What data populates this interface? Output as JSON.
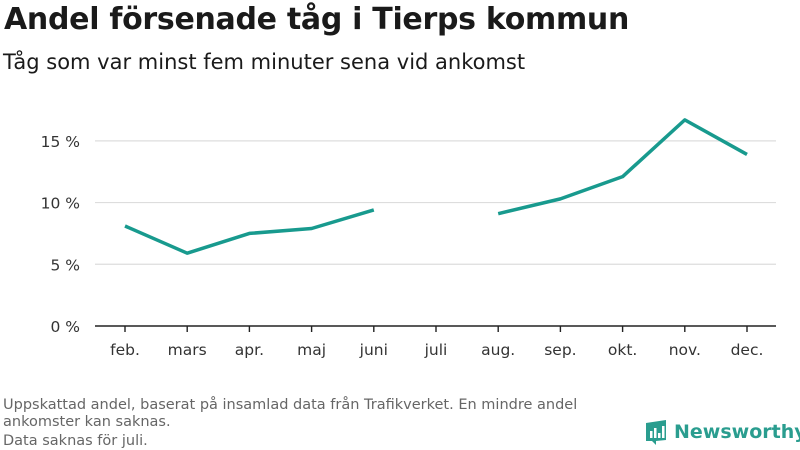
{
  "title": "Andel försenade tåg i Tierps kommun",
  "subtitle": "Tåg som var minst fem minuter sena vid ankomst",
  "notes": [
    "Uppskattad andel, baserat på insamlad data från Trafikverket. En mindre andel ankomster kan saknas.",
    "Data saknas för juli."
  ],
  "brand": "Newsworthy",
  "colors": {
    "line": "#189a8e",
    "grid": "#dddddd",
    "axis": "#222222",
    "brand": "#2a9d8f"
  },
  "chart_data": {
    "type": "line",
    "categories": [
      "feb.",
      "mars",
      "apr.",
      "maj",
      "juni",
      "juli",
      "aug.",
      "sep.",
      "okt.",
      "nov.",
      "dec."
    ],
    "series": [
      {
        "values": [
          8.1,
          5.9,
          7.5,
          7.9,
          9.4,
          null,
          9.1,
          10.3,
          12.1,
          16.7,
          13.9
        ]
      }
    ],
    "y_ticks": [
      0,
      5,
      10,
      15
    ],
    "y_tick_labels": [
      "0 %",
      "5 %",
      "10 %",
      "15 %"
    ],
    "ylim": [
      0,
      17.5
    ],
    "grid": "horizontal",
    "legend": "none"
  }
}
